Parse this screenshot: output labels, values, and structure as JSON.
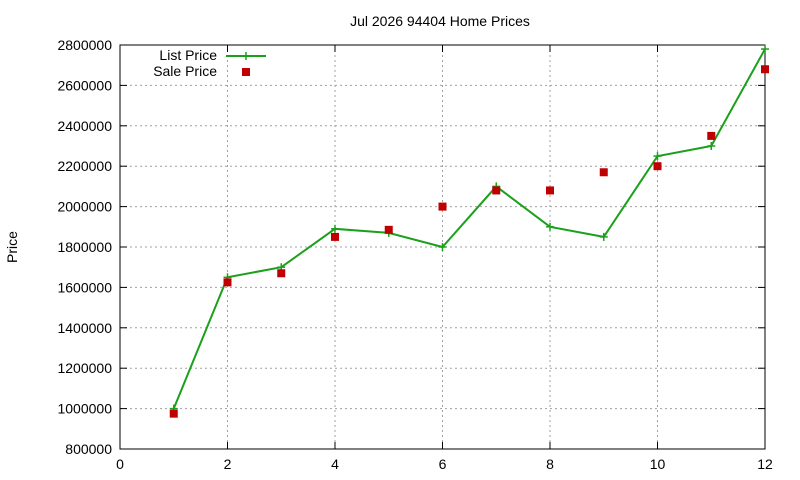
{
  "chart_data": {
    "type": "line",
    "title": "Jul 2026 94404 Home Prices",
    "xlabel": "",
    "ylabel": "Price",
    "xlim": [
      0,
      12
    ],
    "ylim": [
      800000,
      2800000
    ],
    "xticks": [
      0,
      2,
      4,
      6,
      8,
      10,
      12
    ],
    "yticks": [
      800000,
      1000000,
      1200000,
      1400000,
      1600000,
      1800000,
      2000000,
      2200000,
      2400000,
      2600000,
      2800000
    ],
    "grid": true,
    "legend_position": "top-left",
    "series": [
      {
        "name": "List Price",
        "style": "line+cross",
        "color": "#1aa01a",
        "x": [
          1,
          2,
          3,
          4,
          5,
          6,
          7,
          8,
          9,
          10,
          11,
          12
        ],
        "y": [
          1000000,
          1650000,
          1700000,
          1890000,
          1870000,
          1800000,
          2100000,
          1900000,
          1850000,
          2250000,
          2300000,
          2780000
        ]
      },
      {
        "name": "Sale Price",
        "style": "square-points",
        "color": "#c00000",
        "x": [
          1,
          2,
          3,
          4,
          5,
          6,
          7,
          8,
          9,
          10,
          11,
          12
        ],
        "y": [
          975000,
          1625000,
          1670000,
          1850000,
          1885000,
          2000000,
          2080000,
          2080000,
          2170000,
          2200000,
          2350000,
          2680000
        ]
      }
    ]
  }
}
